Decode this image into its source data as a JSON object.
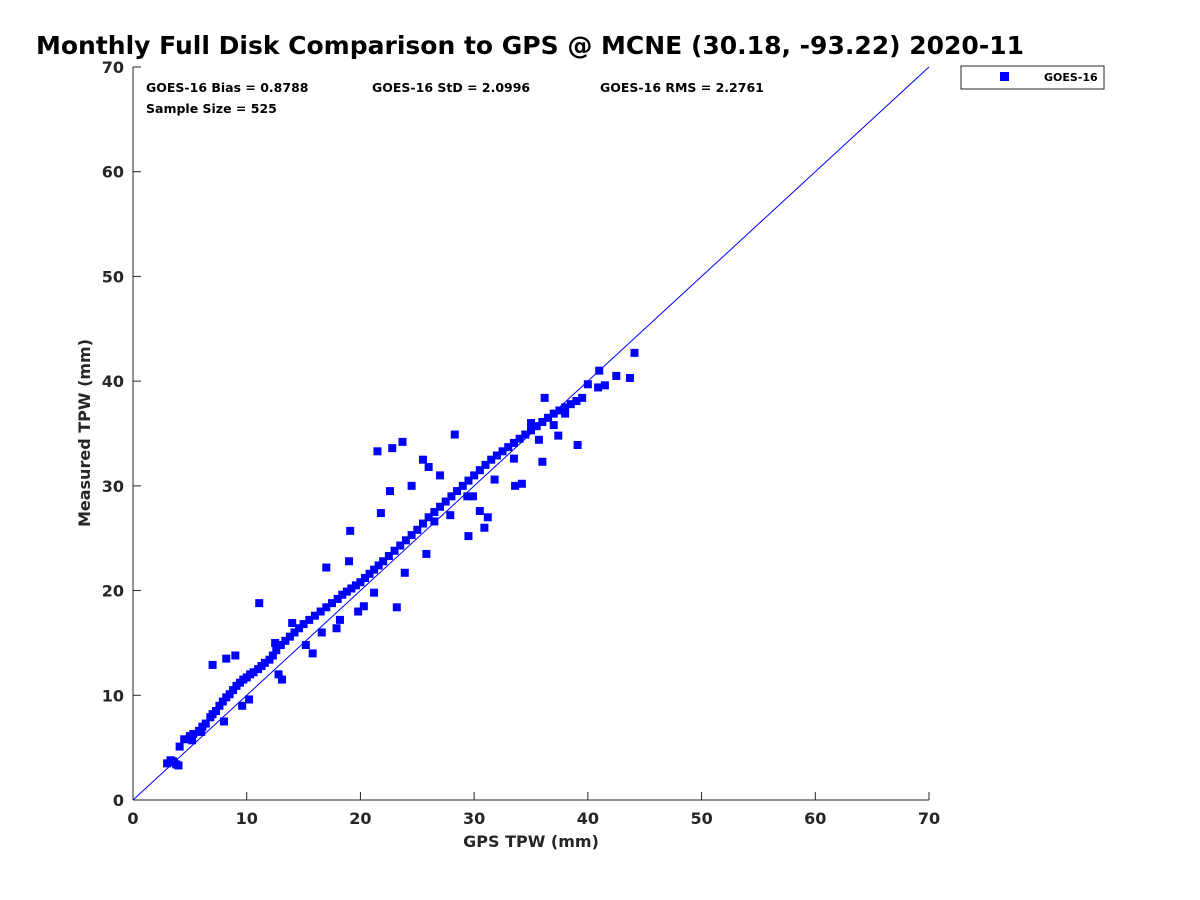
{
  "chart_data": {
    "type": "scatter",
    "title": "Monthly Full Disk Comparison to GPS @ MCNE (30.18, -93.22) 2020-11",
    "xlabel": "GPS TPW (mm)",
    "ylabel": "Measured TPW (mm)",
    "xlim": [
      0,
      70
    ],
    "ylim": [
      0,
      70
    ],
    "xticks": [
      0,
      10,
      20,
      30,
      40,
      50,
      60,
      70
    ],
    "yticks": [
      0,
      10,
      20,
      30,
      40,
      50,
      60,
      70
    ],
    "grid": false,
    "legend_position": "outside-top-right",
    "reference_line": {
      "x": [
        0,
        70
      ],
      "y": [
        0,
        70
      ],
      "color": "#0000ff"
    },
    "stats": {
      "bias": "GOES-16 Bias = 0.8788",
      "std": "GOES-16 StD = 2.0996",
      "rms": "GOES-16 RMS = 2.2761",
      "sample": "Sample Size = 525"
    },
    "series": [
      {
        "name": "GOES-16",
        "color": "#0000ff",
        "marker": "square",
        "x": [
          3.0,
          3.3,
          3.6,
          3.8,
          4.0,
          3.5,
          4.1,
          4.5,
          5.0,
          5.3,
          5.8,
          6.1,
          6.4,
          6.8,
          7.0,
          7.3,
          7.6,
          7.9,
          8.2,
          8.5,
          8.8,
          9.1,
          9.4,
          9.7,
          10.0,
          10.3,
          10.6,
          11.0,
          11.3,
          11.6,
          12.0,
          12.3,
          12.6,
          13.0,
          13.4,
          13.8,
          14.2,
          14.6,
          15.0,
          15.5,
          16.0,
          16.5,
          17.0,
          17.5,
          18.0,
          18.4,
          18.8,
          19.2,
          19.6,
          20.0,
          20.4,
          20.8,
          21.2,
          21.6,
          22.0,
          22.5,
          23.0,
          23.5,
          24.0,
          24.5,
          25.0,
          25.5,
          26.0,
          26.5,
          27.0,
          27.5,
          28.0,
          28.5,
          29.0,
          29.5,
          30.0,
          30.5,
          31.0,
          31.5,
          32.0,
          32.5,
          33.0,
          33.5,
          34.0,
          34.5,
          35.0,
          35.5,
          36.0,
          36.5,
          37.0,
          37.5,
          38.0,
          38.5,
          39.0,
          39.5,
          40.0,
          41.0,
          41.5,
          42.5,
          43.7,
          44.1,
          7.0,
          8.2,
          9.0,
          11.1,
          12.5,
          14.0,
          17.0,
          19.1,
          21.5,
          22.8,
          23.7,
          25.5,
          27.0,
          28.3,
          29.5,
          30.5,
          31.2,
          33.6,
          35.0,
          36.2,
          37.4,
          39.1,
          23.2,
          29.4,
          30.9,
          24.5,
          26.0,
          21.8,
          22.6,
          19.0,
          26.5,
          34.2,
          36.0,
          38.0,
          40.9,
          15.2,
          16.6,
          18.2,
          20.3,
          10.2,
          12.8,
          8.0,
          9.6,
          6.0,
          5.2,
          13.1,
          15.8,
          17.9,
          19.8,
          21.2,
          23.9,
          25.8,
          27.9,
          29.9,
          31.8,
          33.5,
          35.7,
          37.0
        ],
        "y": [
          3.5,
          3.8,
          3.6,
          3.4,
          3.3,
          3.7,
          5.1,
          5.8,
          6.1,
          6.3,
          6.6,
          7.0,
          7.3,
          7.9,
          8.2,
          8.5,
          9.0,
          9.4,
          9.8,
          10.1,
          10.5,
          10.9,
          11.2,
          11.5,
          11.7,
          12.0,
          12.2,
          12.5,
          12.8,
          13.1,
          13.4,
          13.8,
          14.3,
          14.8,
          15.2,
          15.6,
          16.0,
          16.4,
          16.8,
          17.2,
          17.6,
          18.0,
          18.4,
          18.8,
          19.2,
          19.6,
          19.9,
          20.2,
          20.5,
          20.8,
          21.2,
          21.6,
          22.0,
          22.4,
          22.8,
          23.3,
          23.8,
          24.3,
          24.8,
          25.3,
          25.8,
          26.4,
          27.0,
          27.5,
          28.0,
          28.5,
          29.0,
          29.5,
          30.0,
          30.5,
          31.0,
          31.5,
          32.0,
          32.5,
          32.9,
          33.3,
          33.7,
          34.1,
          34.5,
          34.9,
          35.3,
          35.7,
          36.1,
          36.5,
          36.9,
          37.2,
          37.5,
          37.8,
          38.1,
          38.4,
          39.7,
          41.0,
          39.6,
          40.5,
          40.3,
          42.7,
          12.9,
          13.5,
          13.8,
          18.8,
          15.0,
          16.9,
          22.2,
          25.7,
          33.3,
          33.6,
          34.2,
          32.5,
          31.0,
          34.9,
          25.2,
          27.6,
          27.0,
          30.0,
          36.0,
          38.4,
          34.8,
          33.9,
          18.4,
          29.0,
          26.0,
          30.0,
          31.8,
          27.4,
          29.5,
          22.8,
          26.6,
          30.2,
          32.3,
          36.9,
          39.4,
          14.8,
          16.0,
          17.2,
          18.5,
          9.6,
          12.0,
          7.5,
          9.0,
          6.5,
          5.7,
          11.5,
          14.0,
          16.4,
          18.0,
          19.8,
          21.7,
          23.5,
          27.2,
          29.0,
          30.6,
          32.6,
          34.4,
          35.8
        ]
      }
    ]
  }
}
